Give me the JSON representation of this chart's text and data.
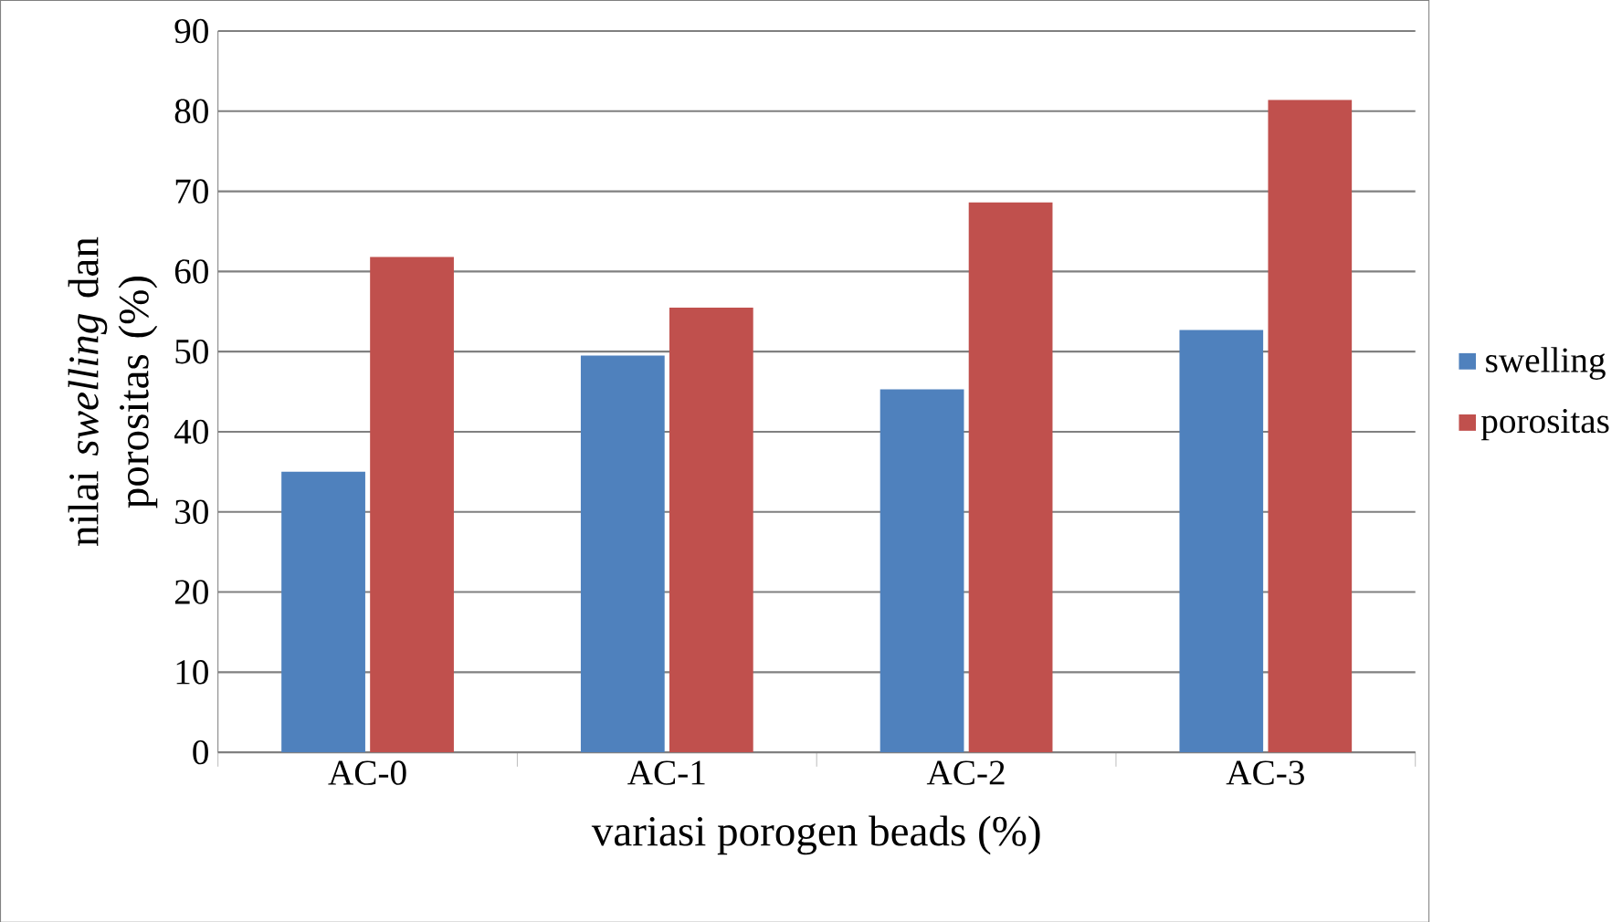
{
  "chart_data": {
    "type": "bar",
    "xlabel": "variasi porogen beads (%)",
    "ylabel": "nilai *swelling* dan porositas (%)",
    "categories": [
      "AC-0",
      "AC-1",
      "AC-2",
      "AC-3"
    ],
    "series": [
      {
        "name": "swelling",
        "color": "#4f81bd",
        "values": [
          35.0,
          49.5,
          45.3,
          52.7
        ]
      },
      {
        "name": "porositas",
        "color": "#c0504d",
        "values": [
          61.8,
          55.5,
          68.6,
          81.4
        ]
      }
    ],
    "ylim": [
      0,
      90
    ],
    "yticks": [
      0,
      10,
      20,
      30,
      40,
      50,
      60,
      70,
      80,
      90
    ],
    "grid": "y",
    "legend": "right"
  }
}
